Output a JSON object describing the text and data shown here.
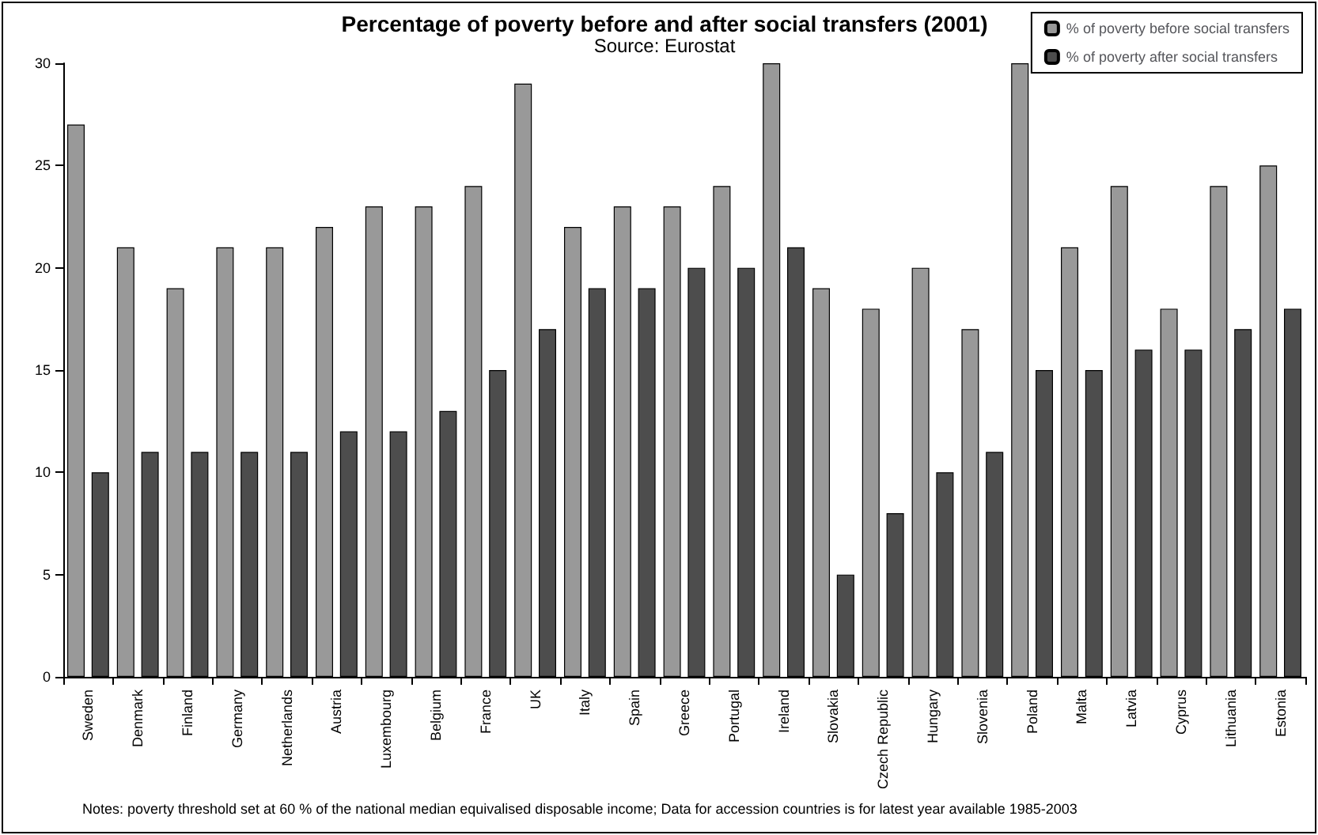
{
  "chart_data": {
    "type": "bar",
    "title": "Percentage of poverty before and after social transfers (2001)",
    "subtitle": "Source: Eurostat",
    "categories": [
      "Sweden",
      "Denmark",
      "Finland",
      "Germany",
      "Netherlands",
      "Austria",
      "Luxembourg",
      "Belgium",
      "France",
      "UK",
      "Italy",
      "Spain",
      "Greece",
      "Portugal",
      "Ireland",
      "Slovakia",
      "Czech Republic",
      "Hungary",
      "Slovenia",
      "Poland",
      "Malta",
      "Latvia",
      "Cyprus",
      "Lithuania",
      "Estonia"
    ],
    "series": [
      {
        "name": "% of poverty before social transfers",
        "color": "#999999",
        "values": [
          27,
          21,
          19,
          21,
          21,
          22,
          23,
          23,
          24,
          29,
          22,
          23,
          23,
          24,
          30,
          19,
          18,
          20,
          17,
          30,
          21,
          24,
          18,
          24,
          25
        ]
      },
      {
        "name": "% of poverty after social transfers",
        "color": "#4d4d4d",
        "values": [
          10,
          11,
          11,
          11,
          11,
          12,
          12,
          13,
          15,
          17,
          19,
          19,
          20,
          20,
          21,
          5,
          8,
          10,
          11,
          15,
          15,
          16,
          16,
          17,
          18
        ]
      }
    ],
    "ylim": [
      0,
      30
    ],
    "yticks": [
      0,
      5,
      10,
      15,
      20,
      25,
      30
    ],
    "grid": false,
    "legend": "top right",
    "annotations": [
      "Notes: poverty threshold set at 60 % of the national median equivalised disposable income; Data for accession countries is for latest year available 1985-2003"
    ]
  }
}
